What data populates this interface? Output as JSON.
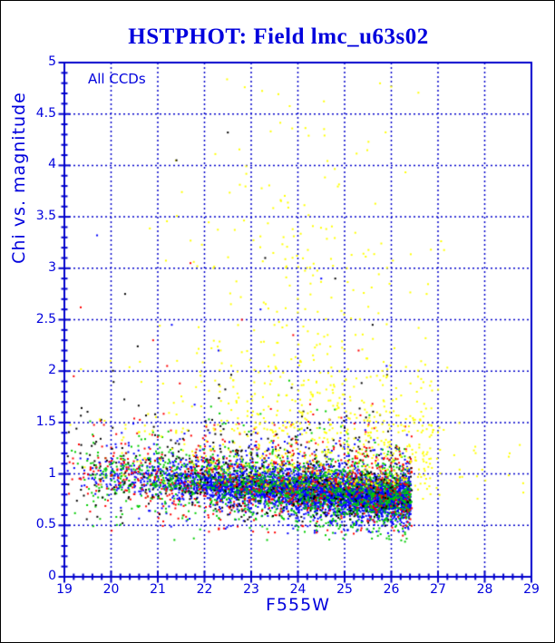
{
  "window": {
    "background": "#ffffff",
    "border_color": "#000000"
  },
  "title": {
    "text": "HSTPHOT: Field lmc_u63s02",
    "color": "#0000dd"
  },
  "chart_data": {
    "type": "scatter",
    "title": "HSTPHOT: Field lmc_u63s02",
    "annotation": "All CCDs",
    "xlabel": "F555W",
    "ylabel": "Chi vs. magnitude",
    "xlim": [
      19,
      29
    ],
    "ylim": [
      0,
      5
    ],
    "xticks": [
      19,
      20,
      21,
      22,
      23,
      24,
      25,
      26,
      27,
      28,
      29
    ],
    "xtick_labels": [
      "19",
      "20",
      "21",
      "22",
      "23",
      "24",
      "25",
      "26",
      "27",
      "28",
      "29"
    ],
    "yticks": [
      0,
      0.5,
      1,
      1.5,
      2,
      2.5,
      3,
      3.5,
      4,
      4.5,
      5
    ],
    "ytick_labels": [
      "0",
      "0.5",
      "1",
      "1.5",
      "2",
      "2.5",
      "3",
      "3.5",
      "4",
      "4.5",
      "5"
    ],
    "minor_x_step": 0.2,
    "minor_y_step": 0.1,
    "grid": {
      "show": true,
      "style": "dashed",
      "color": "#0000cc"
    },
    "axis_color": "#0000cc",
    "text_color": "#0000dd",
    "point_size": 2,
    "seed": 7,
    "series": [
      {
        "name": "ccd-blue",
        "color": "#0000ff",
        "count": 4300,
        "x": {
          "type": "pow",
          "min": 19.0,
          "span": 7.42,
          "exp": 0.42,
          "max": 26.44
        },
        "y": {
          "type": "band",
          "b0": 1.03,
          "b1": -0.036,
          "s1": 0.095,
          "s2": 0.22,
          "f2": 0.18,
          "ymin": 0.42,
          "ymax": 1.9
        }
      },
      {
        "name": "ccd-green",
        "color": "#00cc00",
        "count": 1700,
        "x": {
          "type": "pow",
          "min": 19.0,
          "span": 7.44,
          "exp": 0.55,
          "max": 26.46
        },
        "y": {
          "type": "band",
          "b0": 1.04,
          "b1": -0.036,
          "s1": 0.15,
          "s2": 0.3,
          "f2": 0.22,
          "ymin": 0.34,
          "ymax": 2.0
        }
      },
      {
        "name": "ccd-red",
        "color": "#ff0000",
        "count": 780,
        "x": {
          "type": "pow",
          "min": 19.0,
          "span": 7.44,
          "exp": 0.68,
          "max": 26.45
        },
        "y": {
          "type": "band",
          "b0": 1.05,
          "b1": -0.03,
          "s1": 0.2,
          "s2": 0.36,
          "f2": 0.25,
          "ymin": 0.4,
          "ymax": 2.1
        }
      },
      {
        "name": "ccd-black",
        "color": "#000000",
        "count": 430,
        "x": {
          "type": "pow",
          "min": 19.0,
          "span": 7.44,
          "exp": 0.72,
          "max": 26.45
        },
        "y": {
          "type": "band",
          "b0": 1.08,
          "b1": -0.03,
          "s1": 0.24,
          "s2": 0.5,
          "f2": 0.25,
          "ymin": 0.45,
          "ymax": 2.6
        }
      },
      {
        "name": "flagged-yellow-band",
        "color": "#ffff00",
        "count": 480,
        "x": {
          "type": "pow",
          "min": 19.0,
          "span": 7.9,
          "exp": 0.5,
          "max": 26.9
        },
        "y": {
          "type": "halfup",
          "base": 0.88,
          "sigma": 0.55,
          "ymax": 2.4
        }
      },
      {
        "name": "flagged-yellow-fan",
        "color": "#ffff00",
        "count": 260,
        "x": {
          "type": "gauss",
          "mu": 24.3,
          "sigma": 1.6,
          "min": 20.2,
          "max": 27.2
        },
        "y": {
          "type": "powup",
          "min": 1.4,
          "span": 1.9,
          "exp": 1.7
        }
      },
      {
        "name": "flagged-yellow-high",
        "color": "#ffff00",
        "count": 85,
        "x": {
          "type": "gauss",
          "mu": 24.0,
          "sigma": 1.5,
          "min": 20.3,
          "max": 27.0
        },
        "y": {
          "type": "powup",
          "min": 3.0,
          "span": 1.9,
          "exp": 1.3
        }
      },
      {
        "name": "flagged-yellow-right",
        "color": "#ffff00",
        "count": 28,
        "x": {
          "type": "uniform",
          "min": 26.5,
          "max": 28.85
        },
        "y": {
          "type": "gauss",
          "mu": 1.05,
          "sigma": 0.22,
          "min": 0.6,
          "max": 1.6
        }
      },
      {
        "name": "outliers-red",
        "color": "#ff0000",
        "points": [
          [
            19.35,
            2.62
          ],
          [
            21.7,
            3.05
          ],
          [
            20.9,
            2.3
          ],
          [
            22.8,
            2.5
          ],
          [
            19.2,
            1.95
          ],
          [
            23.9,
            2.35
          ],
          [
            21.2,
            2.05
          ],
          [
            25.3,
            2.2
          ]
        ]
      },
      {
        "name": "outliers-blue",
        "color": "#0000ff",
        "points": [
          [
            19.7,
            3.32
          ],
          [
            21.3,
            2.45
          ],
          [
            23.2,
            2.6
          ],
          [
            24.5,
            2.9
          ],
          [
            22.3,
            2.2
          ],
          [
            25.9,
            2.05
          ]
        ]
      },
      {
        "name": "outliers-black",
        "color": "#000000",
        "points": [
          [
            22.5,
            4.32
          ],
          [
            21.4,
            4.05
          ],
          [
            24.8,
            2.9
          ],
          [
            20.3,
            2.75
          ],
          [
            23.3,
            3.1
          ],
          [
            25.6,
            2.45
          ]
        ]
      }
    ]
  }
}
